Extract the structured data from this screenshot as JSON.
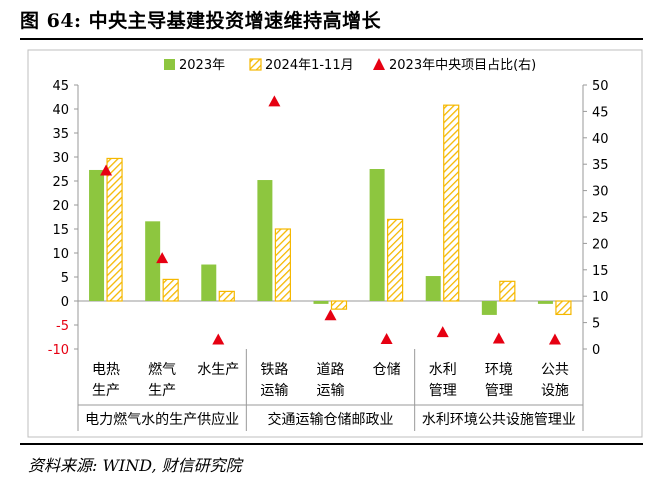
{
  "title": "图 64: 中央主导基建投资增速维持高增长",
  "source": "资料来源: WIND, 财信研究院",
  "colors": {
    "green": "#8dc63f",
    "yellow": "#f5b800",
    "red": "#e60012",
    "axis": "#999999"
  },
  "chart_data": {
    "type": "bar",
    "categories": [
      "电热\n生产",
      "燃气\n生产",
      "水生产",
      "铁路\n运输",
      "道路\n运输",
      "仓储",
      "水利\n管理",
      "环境\n管理",
      "公共\n设施"
    ],
    "groups": [
      {
        "label": "电力燃气水的生产供应业",
        "start": 0,
        "end": 2
      },
      {
        "label": "交通运输仓储邮政业",
        "start": 3,
        "end": 5
      },
      {
        "label": "水利环境公共设施管理业",
        "start": 6,
        "end": 8
      }
    ],
    "series": [
      {
        "name": "2023年",
        "axis": "left",
        "values": [
          27.3,
          16.6,
          7.6,
          25.2,
          -0.6,
          27.5,
          5.2,
          -2.9,
          -0.6
        ]
      },
      {
        "name": "2024年1-11月",
        "axis": "left",
        "values": [
          29.7,
          4.5,
          2.0,
          15.0,
          -1.7,
          17.0,
          40.8,
          4.1,
          -2.8
        ]
      },
      {
        "name": "2023年中央项目占比(右)",
        "axis": "right",
        "marker": "triangle",
        "values": [
          33.8,
          17.2,
          1.8,
          46.9,
          6.4,
          1.9,
          3.2,
          2.0,
          1.8
        ]
      }
    ],
    "yleft": {
      "min": -10,
      "max": 45,
      "ticks": [
        45,
        40,
        35,
        30,
        25,
        20,
        15,
        10,
        5,
        0,
        -5,
        -10
      ]
    },
    "yright": {
      "min": 0,
      "max": 50,
      "ticks": [
        50,
        45,
        40,
        35,
        30,
        25,
        20,
        15,
        10,
        5,
        0
      ]
    },
    "legend_position": "top"
  }
}
